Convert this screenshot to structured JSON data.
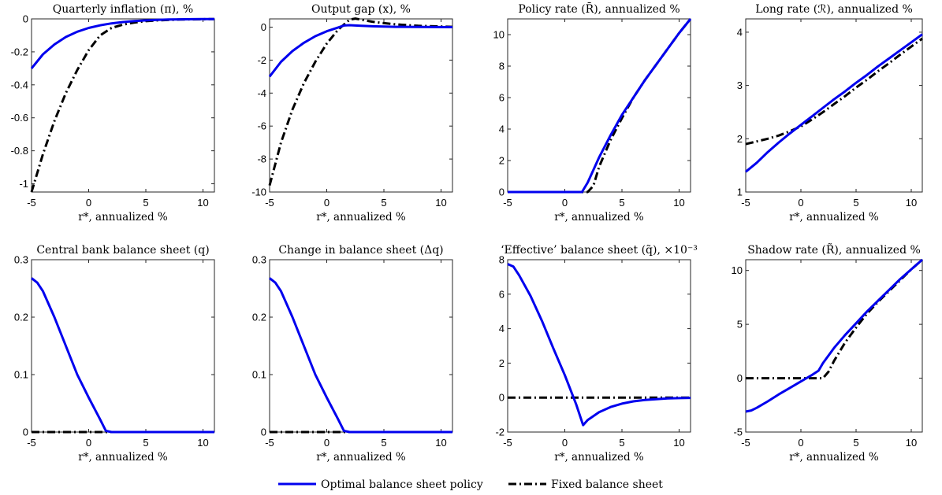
{
  "legend": {
    "optimal_label": "Optimal balance sheet policy",
    "fixed_label": "Fixed balance sheet",
    "optimal_color": "#0000ee",
    "fixed_color": "#000000"
  },
  "chart_data": [
    {
      "type": "line",
      "title": "Quarterly inflation (π), %",
      "xlabel": "r*, annualized %",
      "xlim": [
        -5,
        11
      ],
      "ylim": [
        -1.05,
        0
      ],
      "xticks": [
        "-5",
        "0",
        "5",
        "10"
      ],
      "yticks": [
        "0",
        "-0.2",
        "-0.4",
        "-0.6",
        "-0.8",
        "-1"
      ],
      "ytick_values": [
        0,
        -0.2,
        -0.4,
        -0.6,
        -0.8,
        -1
      ],
      "series": [
        {
          "name": "Optimal balance sheet policy",
          "style": "solid",
          "x": [
            -5,
            -4,
            -3,
            -2,
            -1,
            0,
            1,
            2,
            3,
            4,
            5,
            6,
            7,
            8,
            9,
            10,
            11
          ],
          "y": [
            -0.3,
            -0.215,
            -0.155,
            -0.11,
            -0.078,
            -0.055,
            -0.039,
            -0.027,
            -0.019,
            -0.013,
            -0.009,
            -0.006,
            -0.004,
            -0.003,
            -0.002,
            -0.001,
            -0.001
          ]
        },
        {
          "name": "Fixed balance sheet",
          "style": "dashdot",
          "x": [
            -5,
            -4,
            -3,
            -2,
            -1,
            0,
            1,
            2,
            3,
            4,
            5,
            6,
            7,
            8,
            9,
            10,
            11
          ],
          "y": [
            -1.05,
            -0.82,
            -0.62,
            -0.45,
            -0.31,
            -0.19,
            -0.1,
            -0.055,
            -0.035,
            -0.022,
            -0.014,
            -0.009,
            -0.006,
            -0.004,
            -0.003,
            -0.002,
            -0.001
          ]
        }
      ]
    },
    {
      "type": "line",
      "title": "Output gap (x), %",
      "xlabel": "r*, annualized %",
      "xlim": [
        -5,
        11
      ],
      "ylim": [
        -10,
        0.5
      ],
      "xticks": [
        "-5",
        "0",
        "5",
        "10"
      ],
      "yticks": [
        "0",
        "-2",
        "-4",
        "-6",
        "-8",
        "-10"
      ],
      "ytick_values": [
        0,
        -2,
        -4,
        -6,
        -8,
        -10
      ],
      "series": [
        {
          "name": "Optimal balance sheet policy",
          "style": "solid",
          "x": [
            -5,
            -4,
            -3,
            -2,
            -1,
            0,
            1,
            1.5,
            2,
            3,
            4,
            5,
            6,
            8,
            11
          ],
          "y": [
            -3.0,
            -2.1,
            -1.45,
            -0.95,
            -0.55,
            -0.25,
            -0.02,
            0.1,
            0.12,
            0.08,
            0.05,
            0.03,
            0.02,
            0.01,
            0.0
          ]
        },
        {
          "name": "Fixed balance sheet",
          "style": "dashdot",
          "x": [
            -5,
            -4,
            -3,
            -2,
            -1,
            0,
            1,
            2,
            2.5,
            3,
            4,
            5,
            6,
            8,
            11
          ],
          "y": [
            -9.6,
            -7.0,
            -5.0,
            -3.4,
            -2.1,
            -1.0,
            -0.15,
            0.45,
            0.52,
            0.45,
            0.33,
            0.24,
            0.17,
            0.08,
            0.02
          ]
        }
      ]
    },
    {
      "type": "line",
      "title": "Policy rate (R̄), annualized %",
      "xlabel": "r*, annualized %",
      "xlim": [
        -5,
        11
      ],
      "ylim": [
        0,
        11
      ],
      "xticks": [
        "-5",
        "0",
        "5",
        "10"
      ],
      "yticks": [
        "10",
        "8",
        "6",
        "4",
        "2",
        "0"
      ],
      "ytick_values": [
        10,
        8,
        6,
        4,
        2,
        0
      ],
      "series": [
        {
          "name": "Optimal balance sheet policy",
          "style": "solid",
          "x": [
            -5,
            1.5,
            2,
            3,
            4,
            5,
            6,
            7,
            8,
            9,
            10,
            11
          ],
          "y": [
            0,
            0,
            0.6,
            2.2,
            3.6,
            4.9,
            6.0,
            7.1,
            8.1,
            9.1,
            10.1,
            11.0
          ]
        },
        {
          "name": "Fixed balance sheet",
          "style": "dashdot",
          "x": [
            -5,
            2,
            2.5,
            3,
            4,
            5,
            6,
            7,
            8,
            9,
            10,
            11
          ],
          "y": [
            0,
            0,
            0.4,
            1.6,
            3.3,
            4.7,
            6.0,
            7.1,
            8.1,
            9.1,
            10.1,
            11.0
          ]
        }
      ]
    },
    {
      "type": "line",
      "title": "Long rate (ℛ), annualized %",
      "xlabel": "r*, annualized %",
      "xlim": [
        -5,
        11
      ],
      "ylim": [
        1,
        4.25
      ],
      "xticks": [
        "-5",
        "0",
        "5",
        "10"
      ],
      "yticks": [
        "4",
        "3",
        "2",
        "1"
      ],
      "ytick_values": [
        4,
        3,
        2,
        1
      ],
      "series": [
        {
          "name": "Optimal balance sheet policy",
          "style": "solid",
          "x": [
            -5,
            -4,
            -3,
            -2,
            -1,
            0,
            1,
            2,
            3,
            4,
            5,
            6,
            7,
            8,
            9,
            10,
            11
          ],
          "y": [
            1.38,
            1.55,
            1.75,
            1.93,
            2.1,
            2.26,
            2.42,
            2.58,
            2.74,
            2.89,
            3.05,
            3.2,
            3.36,
            3.51,
            3.66,
            3.81,
            3.96
          ]
        },
        {
          "name": "Fixed balance sheet",
          "style": "dashdot",
          "x": [
            -5,
            -4,
            -3,
            -2,
            -1,
            0,
            1,
            2,
            3,
            4,
            5,
            6,
            7,
            8,
            9,
            10,
            11
          ],
          "y": [
            1.9,
            1.95,
            2.0,
            2.06,
            2.14,
            2.23,
            2.36,
            2.5,
            2.65,
            2.8,
            2.96,
            3.11,
            3.27,
            3.42,
            3.58,
            3.73,
            3.88
          ]
        }
      ]
    },
    {
      "type": "line",
      "title": "Central bank balance sheet (q)",
      "xlabel": "r*, annualized %",
      "xlim": [
        -5,
        11
      ],
      "ylim": [
        0,
        0.3
      ],
      "xticks": [
        "-5",
        "0",
        "5",
        "10"
      ],
      "yticks": [
        "0.3",
        "0.2",
        "0.1",
        "0"
      ],
      "ytick_values": [
        0.3,
        0.2,
        0.1,
        0
      ],
      "series": [
        {
          "name": "Optimal balance sheet policy",
          "style": "solid",
          "x": [
            -5,
            -4.5,
            -4,
            -3,
            -2,
            -1,
            0,
            1,
            1.5,
            2,
            11
          ],
          "y": [
            0.268,
            0.26,
            0.245,
            0.2,
            0.15,
            0.1,
            0.06,
            0.022,
            0.002,
            0,
            0
          ]
        },
        {
          "name": "Fixed balance sheet",
          "style": "dashdot",
          "x": [
            -5,
            11
          ],
          "y": [
            0,
            0
          ]
        }
      ]
    },
    {
      "type": "line",
      "title": "Change in balance sheet (Δq)",
      "xlabel": "r*, annualized %",
      "xlim": [
        -5,
        11
      ],
      "ylim": [
        0,
        0.3
      ],
      "xticks": [
        "-5",
        "0",
        "5",
        "10"
      ],
      "yticks": [
        "0.3",
        "0.2",
        "0.1",
        "0"
      ],
      "ytick_values": [
        0.3,
        0.2,
        0.1,
        0
      ],
      "series": [
        {
          "name": "Optimal balance sheet policy",
          "style": "solid",
          "x": [
            -5,
            -4.5,
            -4,
            -3,
            -2,
            -1,
            0,
            1,
            1.5,
            2,
            11
          ],
          "y": [
            0.268,
            0.26,
            0.245,
            0.2,
            0.15,
            0.1,
            0.06,
            0.022,
            0.002,
            0,
            0
          ]
        },
        {
          "name": "Fixed balance sheet",
          "style": "dashdot",
          "x": [
            -5,
            11
          ],
          "y": [
            0,
            0
          ]
        }
      ]
    },
    {
      "type": "line",
      "title": "‘Effective’ balance sheet (q̃), ×10⁻³",
      "xlabel": "r*, annualized %",
      "xlim": [
        -5,
        11
      ],
      "ylim": [
        -2,
        8
      ],
      "xticks": [
        "-5",
        "0",
        "5",
        "10"
      ],
      "yticks": [
        "8",
        "6",
        "4",
        "2",
        "0",
        "-2"
      ],
      "ytick_values": [
        8,
        6,
        4,
        2,
        0,
        -2
      ],
      "series": [
        {
          "name": "Optimal balance sheet policy",
          "style": "solid",
          "x": [
            -5,
            -4.5,
            -4,
            -3,
            -2,
            -1,
            0,
            1,
            1.6,
            2,
            3,
            4,
            5,
            6,
            7,
            8,
            9,
            10,
            11
          ],
          "y": [
            7.75,
            7.6,
            7.1,
            5.9,
            4.45,
            2.85,
            1.3,
            -0.4,
            -1.6,
            -1.3,
            -0.85,
            -0.55,
            -0.35,
            -0.22,
            -0.14,
            -0.09,
            -0.05,
            -0.03,
            -0.02
          ]
        },
        {
          "name": "Fixed balance sheet",
          "style": "dashdot",
          "x": [
            -5,
            11
          ],
          "y": [
            0,
            0
          ]
        }
      ]
    },
    {
      "type": "line",
      "title": "Shadow rate (R̃), annualized %",
      "xlabel": "r*, annualized %",
      "xlim": [
        -5,
        11
      ],
      "ylim": [
        -5,
        11
      ],
      "xticks": [
        "-5",
        "0",
        "5",
        "10"
      ],
      "yticks": [
        "10",
        "5",
        "0",
        "-5"
      ],
      "ytick_values": [
        10,
        5,
        0,
        -5
      ],
      "series": [
        {
          "name": "Optimal balance sheet policy",
          "style": "solid",
          "x": [
            -5,
            -4.5,
            -4,
            -3,
            -2,
            -1,
            0,
            1,
            1.6,
            2,
            3,
            4,
            5,
            6,
            7,
            8,
            9,
            10,
            11
          ],
          "y": [
            -3.1,
            -3.0,
            -2.75,
            -2.15,
            -1.5,
            -0.9,
            -0.3,
            0.3,
            0.7,
            1.4,
            2.8,
            4.0,
            5.1,
            6.2,
            7.2,
            8.2,
            9.2,
            10.1,
            11.0
          ]
        },
        {
          "name": "Fixed balance sheet",
          "style": "dashdot",
          "x": [
            -5,
            2,
            2.5,
            3,
            4,
            5,
            6,
            7,
            8,
            9,
            10,
            11
          ],
          "y": [
            0,
            0,
            0.6,
            1.6,
            3.3,
            4.7,
            6.0,
            7.1,
            8.1,
            9.1,
            10.1,
            11.0
          ]
        }
      ]
    }
  ]
}
